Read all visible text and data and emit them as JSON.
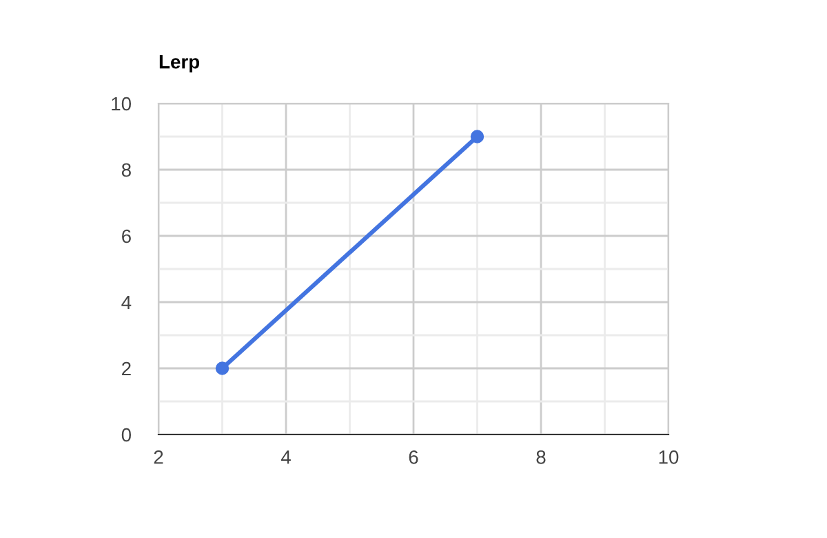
{
  "chart_data": {
    "type": "line",
    "title": "Lerp",
    "x": [
      3,
      7
    ],
    "series": [
      {
        "color": "#4374e0",
        "values": [
          2,
          9
        ]
      }
    ],
    "xlim": [
      2,
      10
    ],
    "xticks": [
      2,
      4,
      6,
      8,
      10
    ],
    "ylim": [
      0,
      10
    ],
    "yticks": [
      0,
      2,
      4,
      6,
      8,
      10
    ],
    "grid": true,
    "marker": "circle",
    "line_style": "solid",
    "legend": false
  }
}
